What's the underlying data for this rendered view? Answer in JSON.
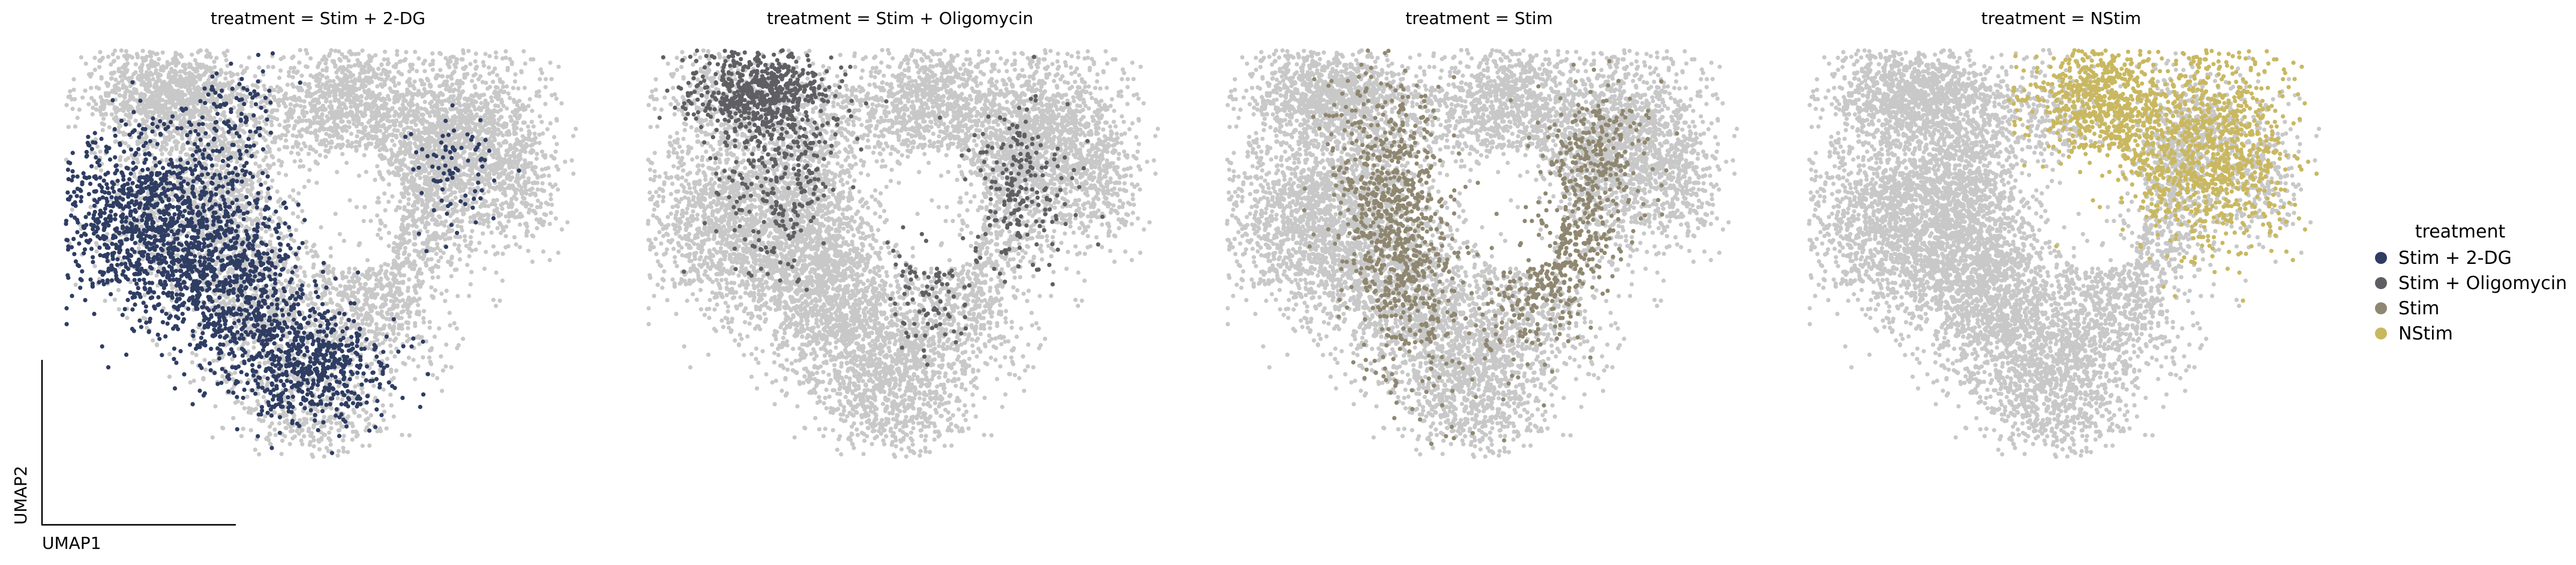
{
  "chart_data": {
    "type": "scatter",
    "subtype": "umap-embedding-faceted",
    "xlabel": "UMAP1",
    "ylabel": "UMAP2",
    "grid": false,
    "background_color": "#c8c8c8",
    "legend": {
      "title": "treatment",
      "placement": "right",
      "entries": [
        {
          "label": "Stim + 2-DG",
          "color": "#2f3d63"
        },
        {
          "label": "Stim + Oligomycin",
          "color": "#5f5f63"
        },
        {
          "label": "Stim",
          "color": "#8f8770"
        },
        {
          "label": "NStim",
          "color": "#c9b860"
        }
      ]
    },
    "panels": [
      {
        "title": "treatment = Stim + 2-DG",
        "highlight": "Stim + 2-DG",
        "color": "#2f3d63"
      },
      {
        "title": "treatment = Stim + Oligomycin",
        "highlight": "Stim + Oligomycin",
        "color": "#5f5f63"
      },
      {
        "title": "treatment = Stim",
        "highlight": "Stim",
        "color": "#8f8770"
      },
      {
        "title": "treatment = NStim",
        "highlight": "NStim",
        "color": "#c9b860"
      }
    ]
  }
}
